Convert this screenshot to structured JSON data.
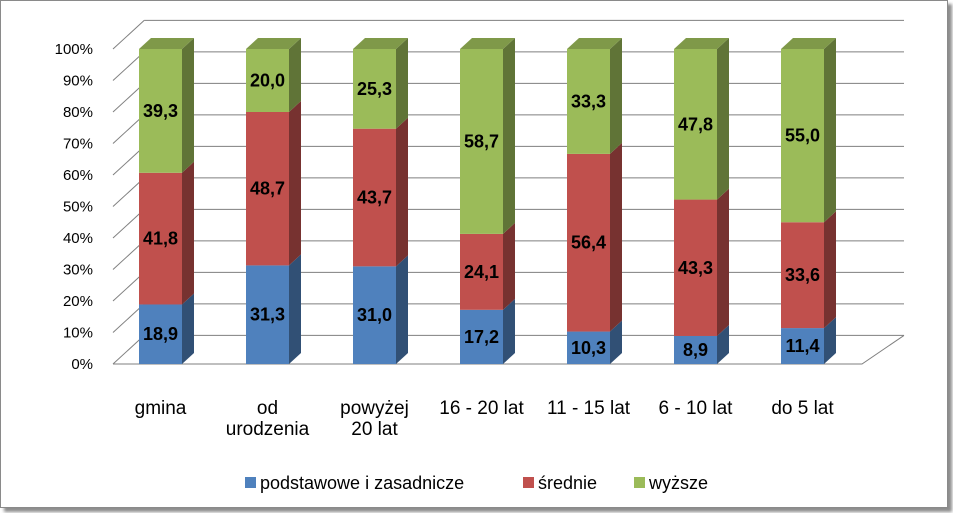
{
  "chart_data": {
    "type": "bar",
    "stacked": true,
    "percent_stacked": true,
    "three_d": true,
    "categories": [
      [
        "gmina"
      ],
      [
        "od",
        "urodzenia"
      ],
      [
        "powyżej",
        "20 lat"
      ],
      [
        "16 - 20 lat"
      ],
      [
        "11 - 15 lat"
      ],
      [
        "6 - 10 lat"
      ],
      [
        "do 5 lat"
      ]
    ],
    "series": [
      {
        "name": "podstawowe i zasadnicze",
        "color": "#4F81BD",
        "values": [
          18.9,
          31.3,
          31.0,
          17.2,
          10.3,
          8.9,
          11.4
        ],
        "labels": [
          "18,9",
          "31,3",
          "31,0",
          "17,2",
          "10,3",
          "8,9",
          "11,4"
        ]
      },
      {
        "name": "średnie",
        "color": "#C0504D",
        "values": [
          41.8,
          48.7,
          43.7,
          24.1,
          56.4,
          43.3,
          33.6
        ],
        "labels": [
          "41,8",
          "48,7",
          "43,7",
          "24,1",
          "56,4",
          "43,3",
          "33,6"
        ]
      },
      {
        "name": "wyższe",
        "color": "#9BBB59",
        "values": [
          39.3,
          20.0,
          25.3,
          58.7,
          33.3,
          47.8,
          55.0
        ],
        "labels": [
          "39,3",
          "20,0",
          "25,3",
          "58,7",
          "33,3",
          "47,8",
          "55,0"
        ]
      }
    ],
    "yticks": [
      "0%",
      "10%",
      "20%",
      "30%",
      "40%",
      "50%",
      "60%",
      "70%",
      "80%",
      "90%",
      "100%"
    ],
    "ylim": [
      0,
      100
    ],
    "grid": true,
    "legend": "bottom"
  }
}
